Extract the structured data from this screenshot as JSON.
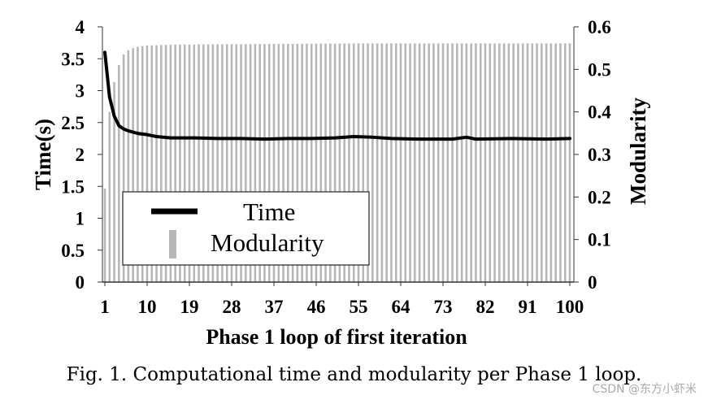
{
  "chart_data": {
    "type": "bar",
    "xlabel": "Phase 1 loop of first iteration",
    "ylabel": "Time(s)",
    "y2label": "Modularity",
    "ylim": [
      0,
      4
    ],
    "y2lim": [
      0,
      0.6
    ],
    "yticks": [
      "0",
      "0.5",
      "1",
      "1.5",
      "2",
      "2.5",
      "3",
      "3.5",
      "4"
    ],
    "y2ticks": [
      "0",
      "0.1",
      "0.2",
      "0.3",
      "0.4",
      "0.5",
      "0.6"
    ],
    "xticks": [
      "1",
      "10",
      "19",
      "28",
      "37",
      "46",
      "55",
      "64",
      "73",
      "82",
      "91",
      "100"
    ],
    "legend_position": "center-left",
    "grid": false,
    "series": [
      {
        "name": "Time",
        "kind": "line",
        "axis": "left",
        "color": "#000000",
        "points": [
          [
            1,
            3.6
          ],
          [
            2,
            2.9
          ],
          [
            3,
            2.6
          ],
          [
            4,
            2.45
          ],
          [
            5,
            2.4
          ],
          [
            6,
            2.37
          ],
          [
            7,
            2.35
          ],
          [
            8,
            2.33
          ],
          [
            9,
            2.32
          ],
          [
            10,
            2.31
          ],
          [
            12,
            2.28
          ],
          [
            15,
            2.26
          ],
          [
            20,
            2.26
          ],
          [
            25,
            2.25
          ],
          [
            30,
            2.25
          ],
          [
            35,
            2.24
          ],
          [
            40,
            2.25
          ],
          [
            45,
            2.25
          ],
          [
            50,
            2.26
          ],
          [
            54,
            2.28
          ],
          [
            58,
            2.27
          ],
          [
            62,
            2.25
          ],
          [
            68,
            2.24
          ],
          [
            75,
            2.24
          ],
          [
            78,
            2.27
          ],
          [
            80,
            2.24
          ],
          [
            88,
            2.25
          ],
          [
            95,
            2.24
          ],
          [
            100,
            2.25
          ]
        ]
      },
      {
        "name": "Modularity",
        "kind": "bar",
        "axis": "right",
        "color": "#b7b7b7",
        "points": [
          [
            1,
            0.22
          ],
          [
            2,
            0.4
          ],
          [
            3,
            0.47
          ],
          [
            4,
            0.51
          ],
          [
            5,
            0.535
          ],
          [
            6,
            0.545
          ],
          [
            7,
            0.55
          ],
          [
            8,
            0.553
          ],
          [
            10,
            0.556
          ],
          [
            15,
            0.558
          ],
          [
            25,
            0.559
          ],
          [
            40,
            0.56
          ],
          [
            55,
            0.561
          ],
          [
            100,
            0.561
          ]
        ]
      }
    ]
  },
  "caption": "Fig. 1. Computational time and modularity per Phase 1 loop.",
  "watermark": "CSDN @东方小虾米"
}
